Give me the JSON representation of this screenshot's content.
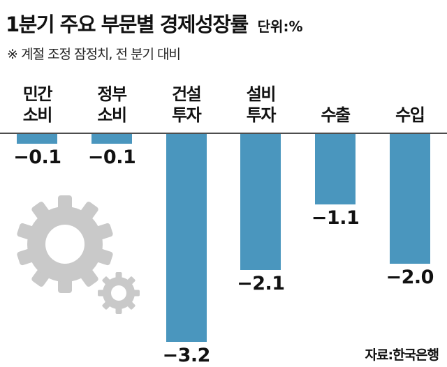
{
  "header": {
    "title": "1분기 주요 부문별 경제성장률",
    "unit": "단위:%",
    "subtitle": "※ 계절 조정 잠정치, 전 분기 대비"
  },
  "source": "자료:한국은행",
  "chart_data": {
    "type": "bar",
    "title": "1분기 주요 부문별 경제성장률",
    "subtitle": "※ 계절 조정 잠정치, 전 분기 대비",
    "unit": "%",
    "categories": [
      "민간 소비",
      "정부 소비",
      "건설 투자",
      "설비 투자",
      "수출",
      "수입"
    ],
    "category_lines": [
      [
        "민간",
        "소비"
      ],
      [
        "정부",
        "소비"
      ],
      [
        "건설",
        "투자"
      ],
      [
        "설비",
        "투자"
      ],
      [
        "수출"
      ],
      [
        "수입"
      ]
    ],
    "values": [
      -0.1,
      -0.1,
      -3.2,
      -2.1,
      -1.1,
      -2.0
    ],
    "value_labels": [
      "−0.1",
      "−0.1",
      "−3.2",
      "−2.1",
      "−1.1",
      "−2.0"
    ],
    "bar_color": "#4a96be",
    "gear_color": "#c9c9c9",
    "ylim": [
      -3.5,
      0
    ],
    "xlabel": "",
    "ylabel": "",
    "grid": false,
    "legend": "none",
    "orientation": "vertical-downward-from-baseline",
    "source": "자료:한국은행"
  }
}
